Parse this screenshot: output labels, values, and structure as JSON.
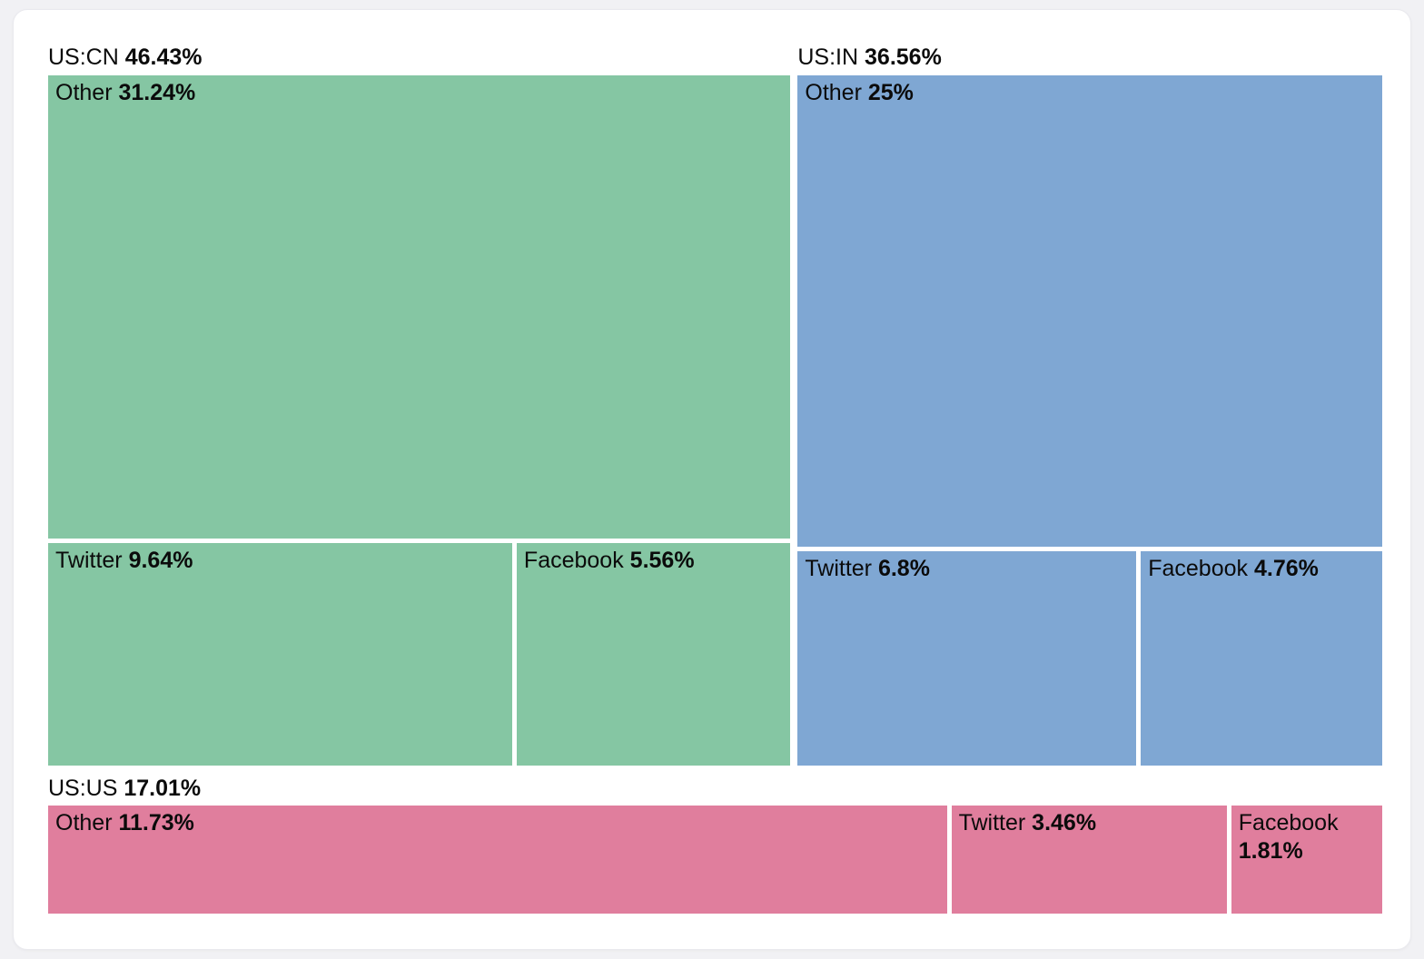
{
  "page": {
    "background_color": "#f1f1f4",
    "card_background_color": "#ffffff",
    "text_color": "#0b0b0b"
  },
  "chart_data": {
    "type": "treemap",
    "title": "",
    "unit": "%",
    "legend": "none",
    "layout_hint": "US:CN and US:IN side-by-side on top row, US:US full-width bottom row; each group has header label above tiles; tile areas proportional to percentage values",
    "groups": [
      {
        "label": "US:CN",
        "value": 46.43,
        "value_label": "46.43%",
        "color": "#85c6a3",
        "children": [
          {
            "label": "Other",
            "value": 31.24,
            "value_label": "31.24%"
          },
          {
            "label": "Twitter",
            "value": 9.64,
            "value_label": "9.64%"
          },
          {
            "label": "Facebook",
            "value": 5.56,
            "value_label": "5.56%"
          }
        ]
      },
      {
        "label": "US:IN",
        "value": 36.56,
        "value_label": "36.56%",
        "color": "#7fa7d3",
        "children": [
          {
            "label": "Other",
            "value": 25,
            "value_label": "25%"
          },
          {
            "label": "Twitter",
            "value": 6.8,
            "value_label": "6.8%"
          },
          {
            "label": "Facebook",
            "value": 4.76,
            "value_label": "4.76%"
          }
        ]
      },
      {
        "label": "US:US",
        "value": 17.01,
        "value_label": "17.01%",
        "color": "#e07e9d",
        "children": [
          {
            "label": "Other",
            "value": 11.73,
            "value_label": "11.73%"
          },
          {
            "label": "Twitter",
            "value": 3.46,
            "value_label": "3.46%"
          },
          {
            "label": "Facebook",
            "value": 1.81,
            "value_label": "1.81%"
          }
        ]
      }
    ]
  }
}
